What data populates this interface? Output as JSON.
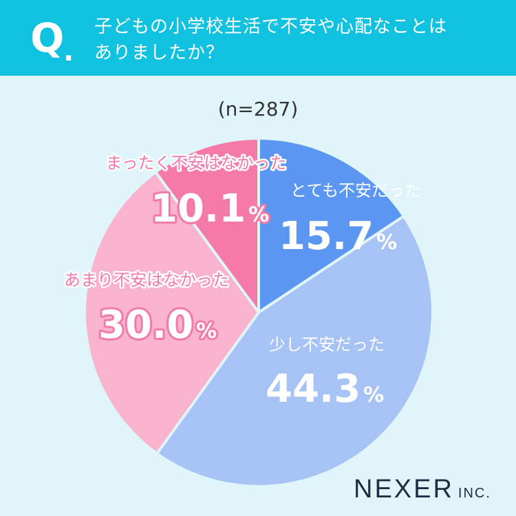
{
  "question": {
    "mark": "Q",
    "dot": ".",
    "line1": "子どもの小学校生活で不安や心配なことは",
    "line2": "ありましたか？"
  },
  "sample_label": "(n=287)",
  "logo": {
    "main": "NEXER",
    "sub": "INC."
  },
  "colors": {
    "header": "#10c2df",
    "background": "#e0f5fa",
    "pink_text": "#f27aa7"
  },
  "chart_data": {
    "type": "pie",
    "start": "12 o'clock",
    "direction": "clockwise",
    "slices": [
      {
        "label": "とても不安だった",
        "value": 15.7,
        "display": "15.7",
        "unit": "%",
        "color": "#5a96f2"
      },
      {
        "label": "少し不安だった",
        "value": 44.3,
        "display": "44.3",
        "unit": "%",
        "color": "#a7c3f6"
      },
      {
        "label": "あまり不安はなかった",
        "value": 30.0,
        "display": "30.0",
        "unit": "%",
        "color": "#f9b3cd"
      },
      {
        "label": "まったく不安はなかった",
        "value": 10.1,
        "display": "10.1",
        "unit": "%",
        "color": "#f57aa8"
      }
    ]
  }
}
